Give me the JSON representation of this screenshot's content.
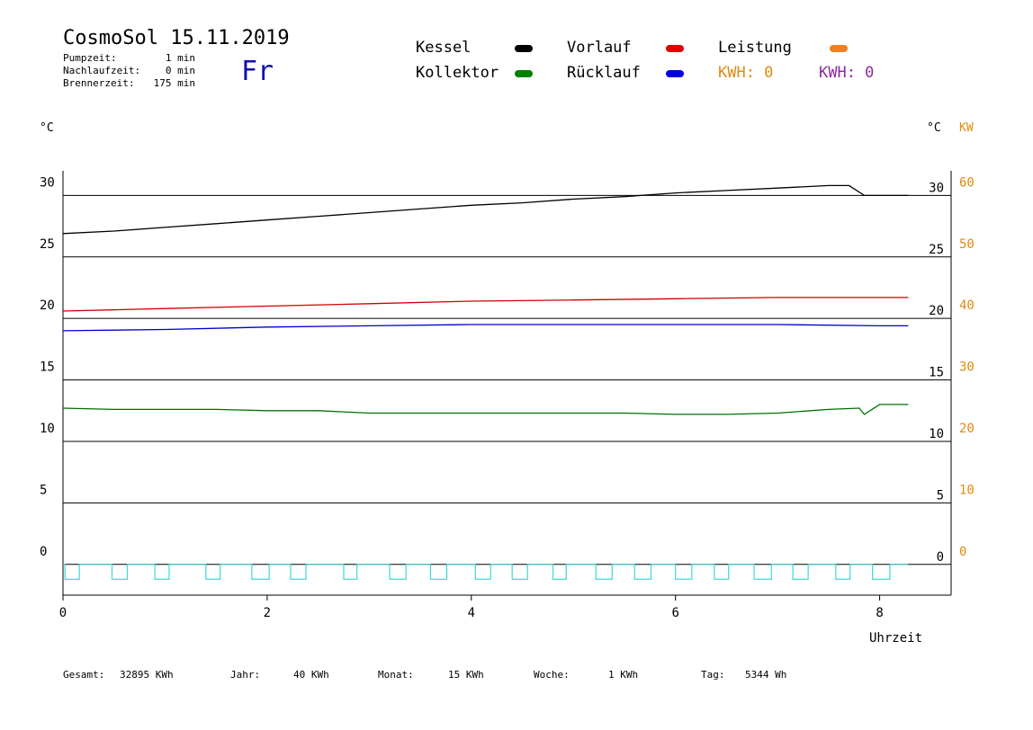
{
  "header": {
    "title": "CosmoSol 15.11.2019",
    "day": "Fr",
    "stats": [
      {
        "label": "Pumpzeit:",
        "value": "1 min"
      },
      {
        "label": "Nachlaufzeit:",
        "value": "0 min"
      },
      {
        "label": "Brennerzeit:",
        "value": "175 min"
      }
    ]
  },
  "legend": {
    "items": [
      {
        "label": "Kessel",
        "color": "#000000"
      },
      {
        "label": "Vorlauf",
        "color": "#e00000"
      },
      {
        "label": "Leistung",
        "color": "#f08020"
      },
      {
        "label": "Kollektor",
        "color": "#008000"
      },
      {
        "label": "Rücklauf",
        "color": "#0000e0"
      }
    ],
    "kwh_orange": "KWH: 0",
    "kwh_purple": "KWH: 0",
    "kwh_orange_color": "#e08a10",
    "kwh_purple_color": "#8a2aa0"
  },
  "footer": [
    {
      "label": "Gesamt:",
      "value": "32895 KWh"
    },
    {
      "label": "Jahr:",
      "value": "40 KWh"
    },
    {
      "label": "Monat:",
      "value": "15 KWh"
    },
    {
      "label": "Woche:",
      "value": "1 KWh"
    },
    {
      "label": "Tag:",
      "value": "5344 Wh"
    }
  ],
  "chart_data": {
    "type": "line",
    "xlabel": "Uhrzeit",
    "ylabel_left": "°C",
    "ylabel_right_temp": "°C",
    "ylabel_right_power": "KW",
    "xlim": [
      0,
      8.7
    ],
    "ylim": [
      -2.5,
      32
    ],
    "xticks": [
      0,
      2,
      4,
      6,
      8
    ],
    "yticks": [
      0,
      5,
      10,
      15,
      20,
      25,
      30
    ],
    "yticks_power": [
      0,
      10,
      20,
      30,
      40,
      50,
      60
    ],
    "grid": "horizontal",
    "series": [
      {
        "name": "Kessel",
        "color": "#000000",
        "x": [
          0,
          0.5,
          1,
          1.5,
          2,
          2.5,
          3,
          3.5,
          4,
          4.5,
          5,
          5.5,
          6,
          6.5,
          7,
          7.5,
          7.7,
          7.85,
          8,
          8.28
        ],
        "y": [
          26.9,
          27.1,
          27.4,
          27.7,
          28.0,
          28.3,
          28.6,
          28.9,
          29.2,
          29.4,
          29.7,
          29.9,
          30.2,
          30.4,
          30.6,
          30.8,
          30.8,
          30.0,
          30.0,
          30.0
        ]
      },
      {
        "name": "Vorlauf",
        "color": "#d00000",
        "x": [
          0,
          1,
          2,
          3,
          4,
          5,
          6,
          7,
          8,
          8.28
        ],
        "y": [
          20.6,
          20.8,
          21.0,
          21.2,
          21.4,
          21.5,
          21.6,
          21.7,
          21.7,
          21.7
        ]
      },
      {
        "name": "Rücklauf",
        "color": "#0000d0",
        "x": [
          0,
          1,
          2,
          3,
          4,
          5,
          6,
          7,
          8,
          8.28
        ],
        "y": [
          19.0,
          19.1,
          19.3,
          19.4,
          19.5,
          19.5,
          19.5,
          19.5,
          19.4,
          19.4
        ]
      },
      {
        "name": "Kollektor",
        "color": "#007000",
        "x": [
          0,
          0.5,
          1,
          1.5,
          2,
          2.5,
          3,
          3.5,
          4,
          4.5,
          5,
          5.5,
          6,
          6.5,
          7,
          7.5,
          7.8,
          7.85,
          8,
          8.28
        ],
        "y": [
          12.7,
          12.6,
          12.6,
          12.6,
          12.5,
          12.5,
          12.3,
          12.3,
          12.3,
          12.3,
          12.3,
          12.3,
          12.2,
          12.2,
          12.3,
          12.6,
          12.7,
          12.2,
          13.0,
          13.0
        ]
      }
    ],
    "pulses": {
      "color": "#40d8d8",
      "high": 0,
      "low": -1.2,
      "intervals": [
        [
          0.02,
          0.16
        ],
        [
          0.48,
          0.63
        ],
        [
          0.9,
          1.04
        ],
        [
          1.4,
          1.54
        ],
        [
          1.85,
          2.02
        ],
        [
          2.23,
          2.38
        ],
        [
          2.75,
          2.88
        ],
        [
          3.2,
          3.36
        ],
        [
          3.6,
          3.76
        ],
        [
          4.04,
          4.19
        ],
        [
          4.4,
          4.55
        ],
        [
          4.8,
          4.93
        ],
        [
          5.22,
          5.38
        ],
        [
          5.6,
          5.76
        ],
        [
          6.0,
          6.16
        ],
        [
          6.38,
          6.52
        ],
        [
          6.77,
          6.94
        ],
        [
          7.15,
          7.3
        ],
        [
          7.57,
          7.71
        ],
        [
          7.93,
          8.1
        ]
      ]
    }
  }
}
